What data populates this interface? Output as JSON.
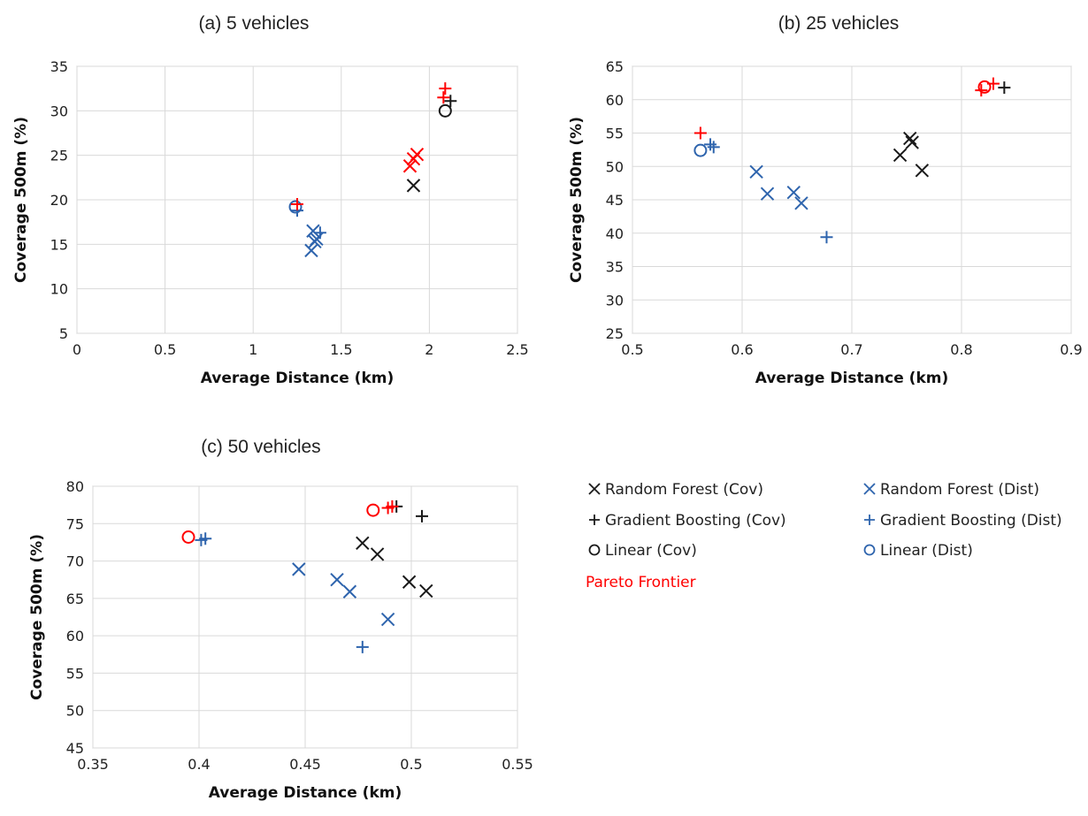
{
  "colors": {
    "cov": "#1a1a1a",
    "dist": "#2e64ad",
    "pareto": "#ff0000"
  },
  "legend": {
    "items": [
      {
        "label": "Random Forest (Cov)",
        "marker": "x",
        "color": "#1a1a1a"
      },
      {
        "label": "Random Forest (Dist)",
        "marker": "x",
        "color": "#2e64ad"
      },
      {
        "label": "Gradient Boosting (Cov)",
        "marker": "plus",
        "color": "#1a1a1a"
      },
      {
        "label": "Gradient Boosting (Dist)",
        "marker": "plus",
        "color": "#2e64ad"
      },
      {
        "label": "Linear (Cov)",
        "marker": "circle",
        "color": "#1a1a1a"
      },
      {
        "label": "Linear (Dist)",
        "marker": "circle",
        "color": "#2e64ad"
      }
    ],
    "pareto_label": "Pareto Frontier"
  },
  "chart_data": [
    {
      "type": "scatter",
      "title": "(a) 5 vehicles",
      "xlabel": "Average Distance (km)",
      "ylabel": "Coverage 500m (%)",
      "xlim": [
        0,
        2.5
      ],
      "ylim": [
        5,
        35
      ],
      "xticks": [
        "0",
        "0.5",
        "1",
        "1.5",
        "2",
        "2.5"
      ],
      "yticks": [
        "5",
        "10",
        "15",
        "20",
        "25",
        "30",
        "35"
      ],
      "grid": true,
      "series": [
        {
          "name": "Random Forest (Cov)",
          "marker": "x",
          "color": "#1a1a1a",
          "points": [
            [
              1.91,
              21.6
            ]
          ]
        },
        {
          "name": "Random Forest (Dist)",
          "marker": "x",
          "color": "#2e64ad",
          "points": [
            [
              1.33,
              14.3
            ],
            [
              1.35,
              15.3
            ],
            [
              1.34,
              16.5
            ],
            [
              1.36,
              15.6
            ]
          ]
        },
        {
          "name": "Gradient Boosting (Cov)",
          "marker": "plus",
          "color": "#1a1a1a",
          "points": [
            [
              2.12,
              31.1
            ]
          ]
        },
        {
          "name": "Gradient Boosting (Dist)",
          "marker": "plus",
          "color": "#2e64ad",
          "points": [
            [
              1.25,
              18.8
            ],
            [
              1.38,
              16.3
            ]
          ]
        },
        {
          "name": "Linear (Cov)",
          "marker": "circle",
          "color": "#1a1a1a",
          "points": [
            [
              2.09,
              30.0
            ]
          ]
        },
        {
          "name": "Linear (Dist)",
          "marker": "circle",
          "color": "#2e64ad",
          "points": [
            [
              1.24,
              19.2
            ]
          ]
        },
        {
          "name": "Pareto Frontier",
          "marker": "x",
          "color": "#ff0000",
          "points": [
            [
              1.89,
              23.8
            ],
            [
              1.91,
              24.6
            ],
            [
              1.93,
              25.1
            ]
          ]
        },
        {
          "name": "Pareto Frontier",
          "marker": "plus",
          "color": "#ff0000",
          "points": [
            [
              1.25,
              19.5
            ],
            [
              2.09,
              32.5
            ],
            [
              2.08,
              31.5
            ]
          ]
        }
      ]
    },
    {
      "type": "scatter",
      "title": "(b) 25 vehicles",
      "xlabel": "Average Distance (km)",
      "ylabel": "Coverage 500m (%)",
      "xlim": [
        0.5,
        0.9
      ],
      "ylim": [
        25,
        65
      ],
      "xticks": [
        "0.5",
        "0.6",
        "0.7",
        "0.8",
        "0.9"
      ],
      "yticks": [
        "25",
        "30",
        "35",
        "40",
        "45",
        "50",
        "55",
        "60",
        "65"
      ],
      "grid": true,
      "series": [
        {
          "name": "Random Forest (Cov)",
          "marker": "x",
          "color": "#1a1a1a",
          "points": [
            [
              0.744,
              51.7
            ],
            [
              0.753,
              54.2
            ],
            [
              0.755,
              53.6
            ],
            [
              0.764,
              49.4
            ]
          ]
        },
        {
          "name": "Random Forest (Dist)",
          "marker": "x",
          "color": "#2e64ad",
          "points": [
            [
              0.613,
              49.2
            ],
            [
              0.623,
              45.9
            ],
            [
              0.647,
              46.1
            ],
            [
              0.654,
              44.5
            ]
          ]
        },
        {
          "name": "Gradient Boosting (Cov)",
          "marker": "plus",
          "color": "#1a1a1a",
          "points": [
            [
              0.839,
              61.8
            ]
          ]
        },
        {
          "name": "Gradient Boosting (Dist)",
          "marker": "plus",
          "color": "#2e64ad",
          "points": [
            [
              0.571,
              53.3
            ],
            [
              0.574,
              52.9
            ],
            [
              0.677,
              39.4
            ]
          ]
        },
        {
          "name": "Linear (Cov)",
          "marker": "circle",
          "color": "#1a1a1a",
          "points": []
        },
        {
          "name": "Linear (Dist)",
          "marker": "circle",
          "color": "#2e64ad",
          "points": [
            [
              0.562,
              52.4
            ]
          ]
        },
        {
          "name": "Pareto Frontier",
          "marker": "circle",
          "color": "#ff0000",
          "points": [
            [
              0.821,
              61.9
            ]
          ]
        },
        {
          "name": "Pareto Frontier",
          "marker": "plus",
          "color": "#ff0000",
          "points": [
            [
              0.562,
              55.0
            ],
            [
              0.829,
              62.4
            ],
            [
              0.818,
              61.4
            ]
          ]
        }
      ]
    },
    {
      "type": "scatter",
      "title": "(c) 50 vehicles",
      "xlabel": "Average Distance (km)",
      "ylabel": "Coverage 500m (%)",
      "xlim": [
        0.35,
        0.55
      ],
      "ylim": [
        45,
        80
      ],
      "xticks": [
        "0.35",
        "0.4",
        "0.45",
        "0.5",
        "0.55"
      ],
      "yticks": [
        "45",
        "50",
        "55",
        "60",
        "65",
        "70",
        "75",
        "80"
      ],
      "grid": true,
      "series": [
        {
          "name": "Random Forest (Cov)",
          "marker": "x",
          "color": "#1a1a1a",
          "points": [
            [
              0.477,
              72.4
            ],
            [
              0.484,
              70.9
            ],
            [
              0.499,
              67.2
            ],
            [
              0.507,
              66.0
            ]
          ]
        },
        {
          "name": "Random Forest (Dist)",
          "marker": "x",
          "color": "#2e64ad",
          "points": [
            [
              0.447,
              68.9
            ],
            [
              0.465,
              67.5
            ],
            [
              0.471,
              65.9
            ],
            [
              0.489,
              62.2
            ]
          ]
        },
        {
          "name": "Gradient Boosting (Cov)",
          "marker": "plus",
          "color": "#1a1a1a",
          "points": [
            [
              0.493,
              77.3
            ],
            [
              0.505,
              76.0
            ]
          ]
        },
        {
          "name": "Gradient Boosting (Dist)",
          "marker": "plus",
          "color": "#2e64ad",
          "points": [
            [
              0.403,
              73.0
            ],
            [
              0.401,
              72.8
            ],
            [
              0.477,
              58.5
            ]
          ]
        },
        {
          "name": "Linear (Cov)",
          "marker": "circle",
          "color": "#1a1a1a",
          "points": []
        },
        {
          "name": "Linear (Dist)",
          "marker": "circle",
          "color": "#2e64ad",
          "points": []
        },
        {
          "name": "Pareto Frontier",
          "marker": "circle",
          "color": "#ff0000",
          "points": [
            [
              0.395,
              73.2
            ],
            [
              0.482,
              76.8
            ]
          ]
        },
        {
          "name": "Pareto Frontier",
          "marker": "plus",
          "color": "#ff0000",
          "points": [
            [
              0.489,
              77.1
            ],
            [
              0.491,
              77.3
            ]
          ]
        }
      ]
    }
  ]
}
